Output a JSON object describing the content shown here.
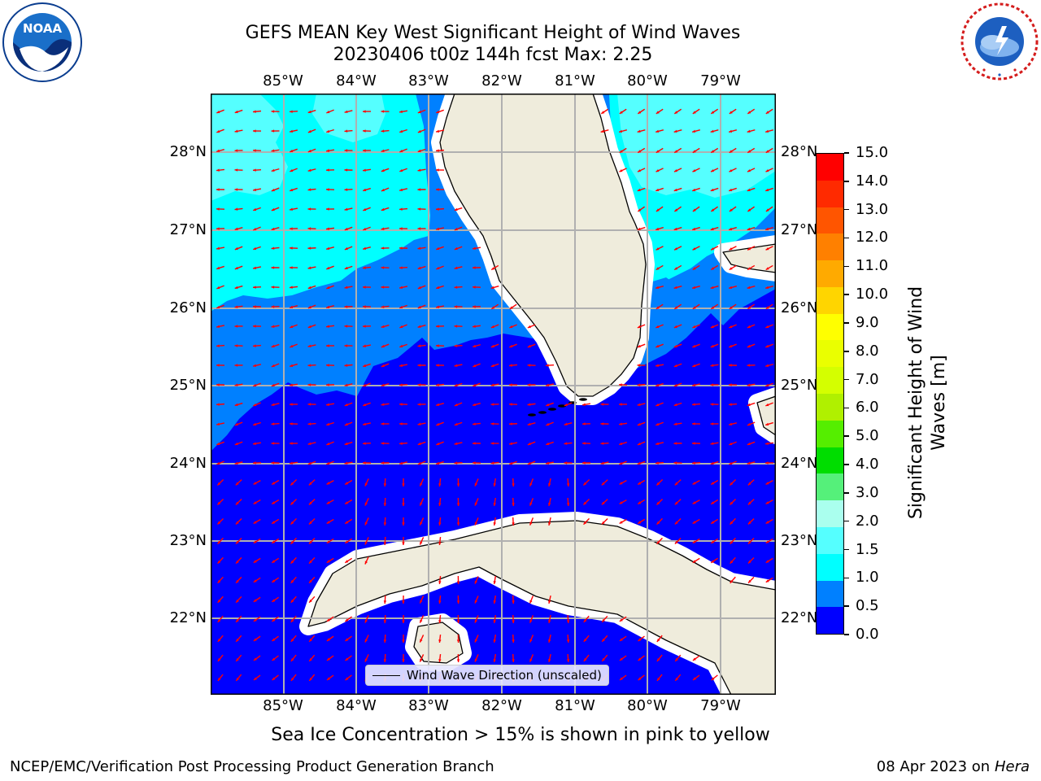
{
  "header": {
    "title_line1": "GEFS MEAN Key West Significant Height of Wind Waves",
    "title_line2": "20230406 t00z 144h fcst   Max: 2.25"
  },
  "logos": {
    "noaa_text": "NOAA",
    "noaa_ring_text": "NATIONAL OCEANIC AND ATMOSPHERIC ADMINISTRATION · U.S. DEPARTMENT OF COMMERCE",
    "nws_ring_text": "NATIONAL WEATHER SERVICE"
  },
  "map": {
    "lon_labels": [
      "85°W",
      "84°W",
      "83°W",
      "82°W",
      "81°W",
      "80°W",
      "79°W"
    ],
    "lat_labels": [
      "28°N",
      "27°N",
      "26°N",
      "25°N",
      "24°N",
      "23°N",
      "22°N"
    ],
    "legend_label": "Wind Wave Direction (unscaled)",
    "land_color": "#efecdc",
    "arrow_color": "#ff0000",
    "grid_color": "#b0b0b0"
  },
  "colorbar": {
    "label_line1": "Significant Height of Wind",
    "label_line2": "Waves [m]",
    "ticks": [
      "15.0",
      "14.0",
      "13.0",
      "12.0",
      "11.0",
      "10.0",
      "9.0",
      "8.0",
      "7.0",
      "6.0",
      "5.0",
      "4.0",
      "3.0",
      "2.0",
      "1.5",
      "1.0",
      "0.5",
      "0.0"
    ],
    "colors_top_to_bottom": [
      "#ff0000",
      "#ff2a00",
      "#ff5500",
      "#ff8000",
      "#ffaa00",
      "#ffd500",
      "#ffff00",
      "#eaff00",
      "#d4ff00",
      "#b0f000",
      "#55ee00",
      "#00dd00",
      "#55f07a",
      "#aaffee",
      "#55ffff",
      "#00ffff",
      "#0080ff",
      "#0000ff"
    ]
  },
  "footer": {
    "ice_note": "Sea Ice Concentration > 15% is shown in pink to yellow",
    "branch": "NCEP/EMC/Verification Post Processing Product Generation Branch",
    "date": "08 Apr 2023 on ",
    "machine": "Hera"
  }
}
